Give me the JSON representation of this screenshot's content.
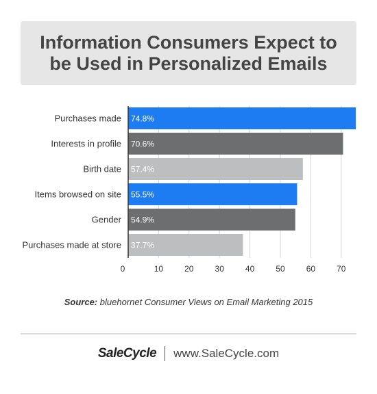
{
  "title": "Information Consumers Expect to\nbe Used in Personalized Emails",
  "chart_data": {
    "type": "bar",
    "orientation": "horizontal",
    "title": "Information Consumers Expect to be Used in Personalized Emails",
    "categories": [
      "Purchases made",
      "Interests in profile",
      "Birth date",
      "Items browsed on site",
      "Gender",
      "Purchases made at store"
    ],
    "values": [
      74.8,
      70.6,
      57.4,
      55.5,
      54.9,
      37.7
    ],
    "value_labels": [
      "74.8%",
      "70.6%",
      "57.4%",
      "55.5%",
      "54.9%",
      "37.7%"
    ],
    "bar_colors": [
      "#1e7cf2",
      "#6d6e70",
      "#bcbec0",
      "#1e7cf2",
      "#6d6e70",
      "#bcbec0"
    ],
    "xticks": [
      0,
      10,
      20,
      30,
      40,
      50,
      60,
      70
    ],
    "xlim": [
      0,
      75
    ],
    "grid": true,
    "xlabel": "",
    "ylabel": ""
  },
  "source": {
    "label": "Source:",
    "text": "bluehornet Consumer Views on Email Marketing 2015"
  },
  "footer": {
    "brand": "SaleCycle",
    "url": "www.SaleCycle.com"
  }
}
